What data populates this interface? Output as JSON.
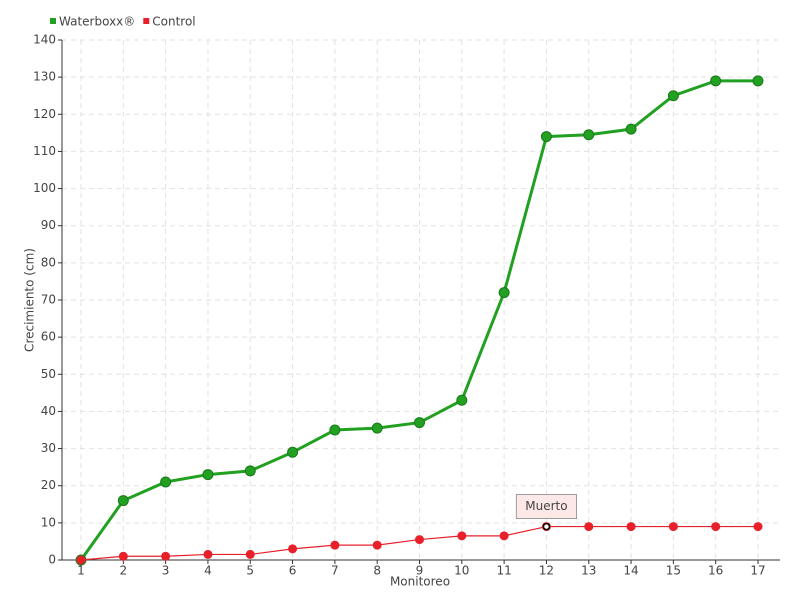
{
  "chart_data": {
    "type": "line",
    "x_label": "Monitoreo",
    "y_label": "Crecimiento (cm)",
    "categories": [
      "1",
      "2",
      "3",
      "4",
      "5",
      "6",
      "7",
      "8",
      "9",
      "10",
      "11",
      "12",
      "13",
      "14",
      "15",
      "16",
      "17"
    ],
    "series": [
      {
        "name": "Waterboxx®",
        "color": "#22a022",
        "values": [
          0,
          16,
          21,
          23,
          24,
          29,
          35,
          35.5,
          37,
          43,
          72,
          114,
          114.5,
          116,
          125,
          129,
          129
        ]
      },
      {
        "name": "Control",
        "color": "#e8202a",
        "values": [
          0,
          1,
          1,
          1.5,
          1.5,
          3,
          4,
          4,
          5.5,
          6.5,
          6.5,
          9,
          9,
          9,
          9,
          9,
          9
        ]
      }
    ],
    "annotations": [
      {
        "text": "Muerto",
        "x": "12",
        "series": "Control"
      }
    ],
    "ylim": [
      0,
      140
    ],
    "yticks": [
      0,
      10,
      20,
      30,
      40,
      50,
      60,
      70,
      80,
      90,
      100,
      110,
      120,
      130,
      140
    ],
    "grid": true
  }
}
